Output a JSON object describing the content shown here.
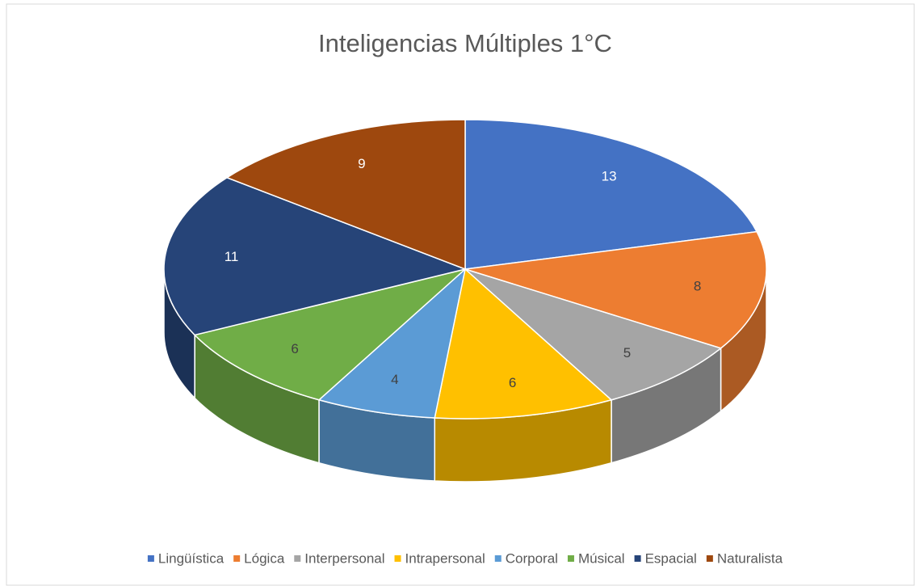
{
  "chart_data": {
    "type": "pie",
    "title": "Inteligencias Múltiples 1°C",
    "categories": [
      "Lingüística",
      "Lógica",
      "Interpersonal",
      "Intrapersonal",
      "Corporal",
      "Músical",
      "Espacial",
      "Naturalista"
    ],
    "values": [
      13,
      8,
      5,
      6,
      4,
      6,
      11,
      9
    ],
    "colors": [
      "#4472c4",
      "#ed7d31",
      "#a5a5a5",
      "#ffc000",
      "#5b9bd5",
      "#70ad47",
      "#264478",
      "#9e480e"
    ],
    "legend": "bottom"
  }
}
